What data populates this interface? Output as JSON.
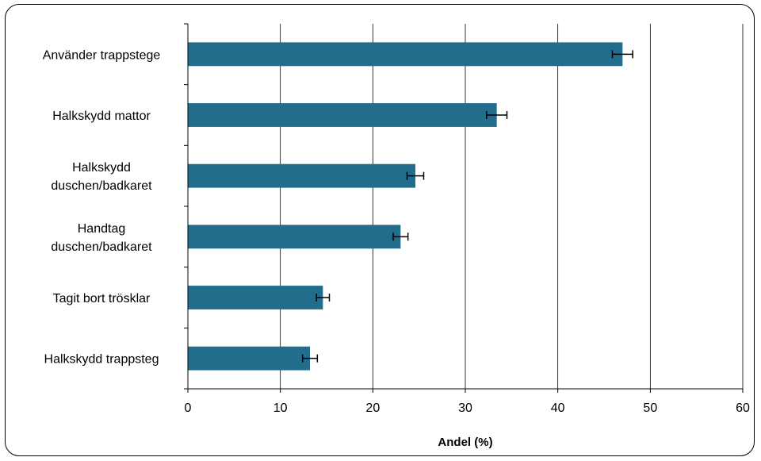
{
  "chart_data": {
    "type": "bar",
    "orientation": "horizontal",
    "categories": [
      [
        "Använder trappstege"
      ],
      [
        "Halkskydd mattor"
      ],
      [
        "Halkskydd",
        "duschen/badkaret"
      ],
      [
        "Handtag",
        "duschen/badkaret"
      ],
      [
        "Tagit bort trösklar"
      ],
      [
        "Halkskydd trappsteg"
      ]
    ],
    "values": [
      47.0,
      33.4,
      24.6,
      23.0,
      14.6,
      13.2
    ],
    "error": [
      1.1,
      1.1,
      0.9,
      0.8,
      0.7,
      0.8
    ],
    "xlabel": "Andel (%)",
    "xlim": [
      0,
      60
    ],
    "xticks": [
      "0",
      "10",
      "20",
      "30",
      "40",
      "50",
      "60"
    ],
    "grid": "vertical",
    "bar_color": "#236d8c"
  }
}
